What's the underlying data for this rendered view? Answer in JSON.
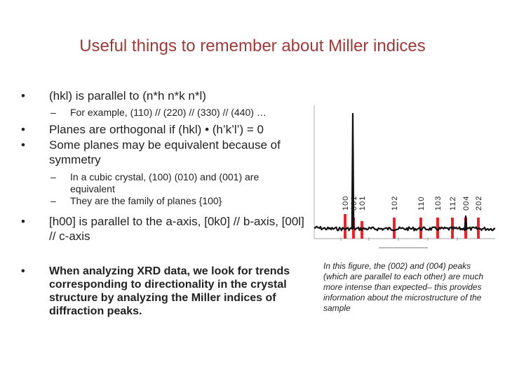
{
  "slide": {
    "title": "Useful things to remember about Miller indices",
    "bullets": [
      {
        "level": 1,
        "text": "(hkl) is parallel to (n*h n*k n*l)"
      },
      {
        "level": 2,
        "text": "For example, (110) // (220) // (330) // (440) …"
      },
      {
        "level": 1,
        "text": "Planes are orthogonal if (hkl) • (h’k’l’) = 0"
      },
      {
        "level": 1,
        "text": "Some planes may be equivalent because of symmetry"
      },
      {
        "level": 2,
        "text": "In a cubic crystal, (100) (010) and (001) are equivalent"
      },
      {
        "level": 2,
        "text": "They are the family of planes {100}"
      },
      {
        "level": 1,
        "text": "[h00] is parallel to the a-axis, [0k0] // b-axis, [00l] // c-axis"
      },
      {
        "level": 1,
        "text": "When analyzing XRD data, we look for trends corresponding to directionality in the crystal structure by analyzing the Miller indices of diffraction peaks."
      }
    ],
    "caption": "In this figure, the (002) and (004) peaks (which are parallel to each other) are much more intense than expected– this provides information about the microstructure of the sample"
  },
  "figure": {
    "peak_labels": [
      "100",
      "001",
      "101",
      "102",
      "110",
      "103",
      "112",
      "004",
      "202"
    ],
    "marker_color": "#e8242a",
    "trace_color": "#111111"
  }
}
